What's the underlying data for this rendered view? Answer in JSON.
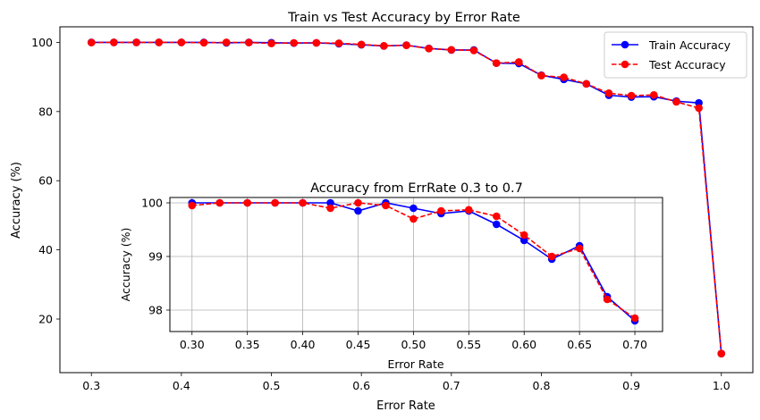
{
  "chart_data": [
    {
      "type": "line",
      "title": "Train vs Test Accuracy by Error Rate",
      "xlabel": "Error Rate",
      "ylabel": "Accuracy (%)",
      "xlim": [
        0.265,
        1.035
      ],
      "ylim": [
        4.5,
        104.5
      ],
      "xticks": [
        0.3,
        0.4,
        0.5,
        0.6,
        0.7,
        0.8,
        0.9,
        1.0
      ],
      "xtick_labels": [
        "0.3",
        "0.4",
        "0.5",
        "0.6",
        "0.7",
        "0.8",
        "0.9",
        "1.0"
      ],
      "yticks": [
        20,
        40,
        60,
        80,
        100
      ],
      "ytick_labels": [
        "20",
        "40",
        "60",
        "80",
        "100"
      ],
      "grid": false,
      "legend": "top-right",
      "x": [
        0.3,
        0.325,
        0.35,
        0.375,
        0.4,
        0.425,
        0.45,
        0.475,
        0.5,
        0.525,
        0.55,
        0.575,
        0.6,
        0.625,
        0.65,
        0.675,
        0.7,
        0.725,
        0.75,
        0.775,
        0.8,
        0.825,
        0.85,
        0.875,
        0.9,
        0.925,
        0.95,
        0.975,
        1.0
      ],
      "series": [
        {
          "name": "Train Accuracy",
          "color": "#0000ff",
          "linestyle": "solid",
          "marker": "circle",
          "values": [
            100.0,
            100.0,
            100.0,
            100.0,
            100.0,
            100.0,
            99.85,
            100.0,
            99.9,
            99.8,
            99.85,
            99.6,
            99.3,
            98.95,
            99.2,
            98.25,
            97.8,
            97.8,
            94.0,
            93.9,
            90.5,
            89.3,
            88.0,
            84.7,
            84.2,
            84.3,
            83.0,
            82.5,
            10.0
          ]
        },
        {
          "name": "Test Accuracy",
          "color": "#ff0000",
          "linestyle": "dashed",
          "marker": "circle",
          "values": [
            99.95,
            100.0,
            100.0,
            100.0,
            100.0,
            99.9,
            100.0,
            99.95,
            99.7,
            99.85,
            99.87,
            99.75,
            99.4,
            99.0,
            99.15,
            98.2,
            97.85,
            97.65,
            94.0,
            94.3,
            90.4,
            89.9,
            88.0,
            85.3,
            84.6,
            84.8,
            82.8,
            81.0,
            10.0
          ]
        }
      ]
    },
    {
      "type": "line",
      "title": "Accuracy from ErrRate 0.3 to 0.7",
      "xlabel": "Error Rate",
      "ylabel": "Accuracy (%)",
      "xlim": [
        0.28,
        0.725
      ],
      "ylim": [
        97.6,
        100.1
      ],
      "xticks": [
        0.3,
        0.35,
        0.4,
        0.45,
        0.5,
        0.55,
        0.6,
        0.65,
        0.7
      ],
      "xtick_labels": [
        "0.30",
        "0.35",
        "0.40",
        "0.45",
        "0.50",
        "0.55",
        "0.60",
        "0.65",
        "0.70"
      ],
      "yticks": [
        98,
        99,
        100
      ],
      "ytick_labels": [
        "98",
        "99",
        "100"
      ],
      "grid": true,
      "x": [
        0.3,
        0.325,
        0.35,
        0.375,
        0.4,
        0.425,
        0.45,
        0.475,
        0.5,
        0.525,
        0.55,
        0.575,
        0.6,
        0.625,
        0.65,
        0.675,
        0.7
      ],
      "series": [
        {
          "name": "Train Accuracy",
          "color": "#0000ff",
          "linestyle": "solid",
          "marker": "circle",
          "values": [
            100.0,
            100.0,
            100.0,
            100.0,
            100.0,
            100.0,
            99.85,
            100.0,
            99.9,
            99.8,
            99.85,
            99.6,
            99.3,
            98.95,
            99.2,
            98.25,
            97.8
          ]
        },
        {
          "name": "Test Accuracy",
          "color": "#ff0000",
          "linestyle": "dashed",
          "marker": "circle",
          "values": [
            99.95,
            100.0,
            100.0,
            100.0,
            100.0,
            99.9,
            100.0,
            99.95,
            99.7,
            99.85,
            99.87,
            99.75,
            99.4,
            99.0,
            99.15,
            98.2,
            97.85
          ]
        }
      ]
    }
  ]
}
